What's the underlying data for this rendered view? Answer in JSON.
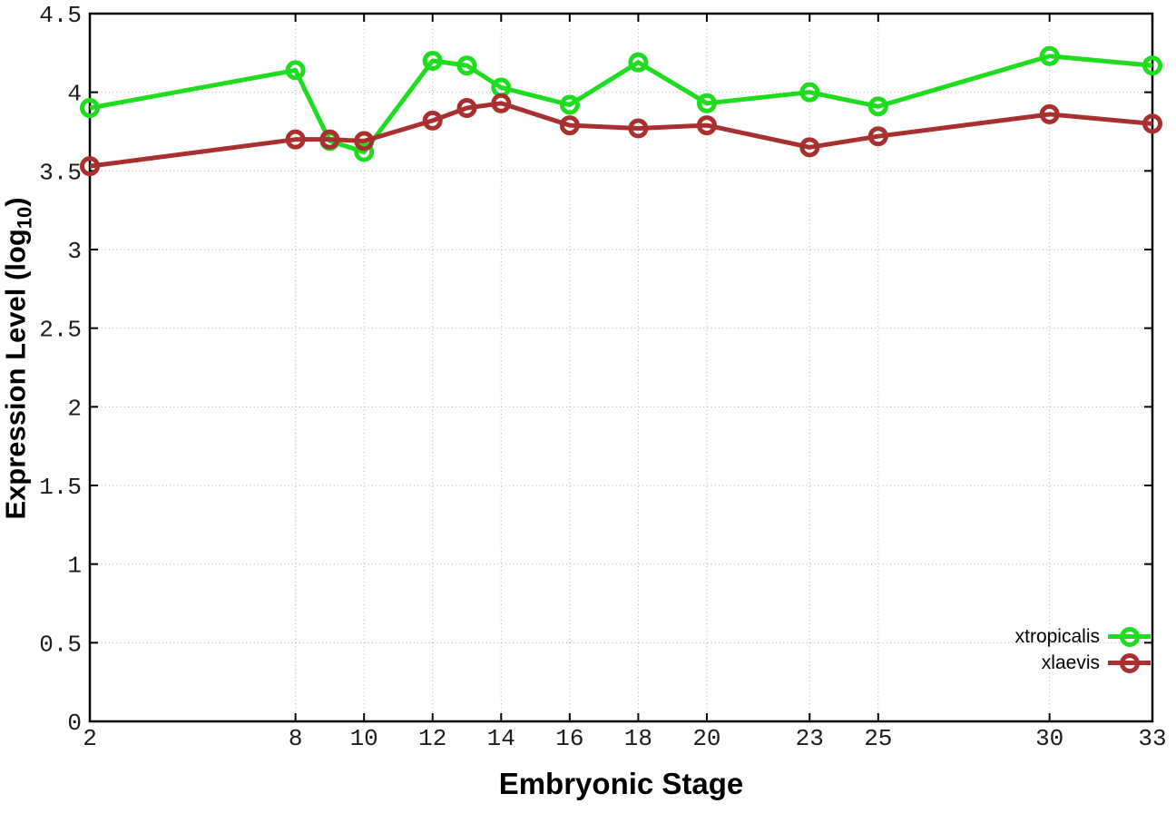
{
  "chart_data": {
    "type": "line",
    "title": "",
    "xlabel": "Embryonic Stage",
    "ylabel": "Expression Level (log10)",
    "ylabel_parts": {
      "prefix": "Expression Level (log",
      "subscript": "10",
      "suffix": ")"
    },
    "x": [
      2,
      8,
      9,
      10,
      12,
      13,
      14,
      16,
      18,
      20,
      23,
      25,
      30,
      33
    ],
    "xlim": [
      2,
      33
    ],
    "ylim": [
      0,
      4.5
    ],
    "x_ticks": [
      2,
      8,
      10,
      12,
      14,
      16,
      18,
      20,
      23,
      25,
      30,
      33
    ],
    "y_ticks": [
      0,
      0.5,
      1,
      1.5,
      2,
      2.5,
      3,
      3.5,
      4,
      4.5
    ],
    "grid": true,
    "legend_position": "inside-bottom-right",
    "series": [
      {
        "name": "xtropicalis",
        "color": "#1edc1e",
        "marker": "open-circle",
        "values": [
          3.9,
          4.14,
          3.69,
          3.62,
          4.2,
          4.17,
          4.03,
          3.92,
          4.19,
          3.93,
          4.0,
          3.91,
          4.23,
          4.17
        ]
      },
      {
        "name": "xlaevis",
        "color": "#a93030",
        "marker": "open-circle",
        "values": [
          3.53,
          3.7,
          3.7,
          3.69,
          3.82,
          3.9,
          3.93,
          3.79,
          3.77,
          3.79,
          3.65,
          3.72,
          3.86,
          3.8
        ]
      }
    ]
  },
  "colors": {
    "axis": "#000000",
    "grid": "#ababab",
    "tick_label": "#1c1c1c",
    "background": "#ffffff"
  }
}
